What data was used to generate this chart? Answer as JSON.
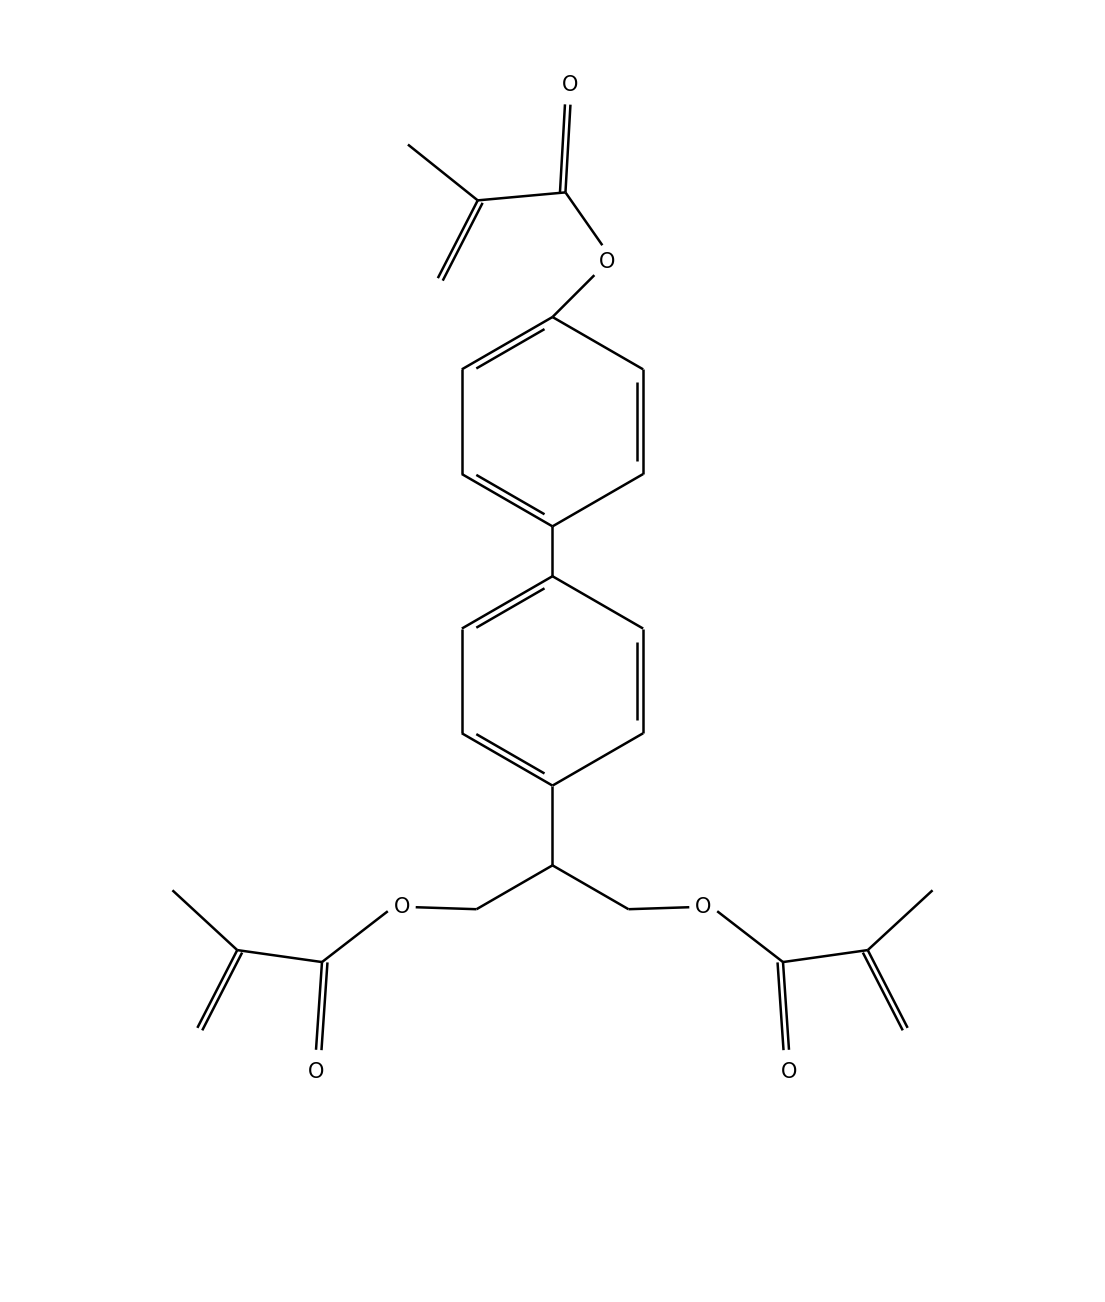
{
  "line_color": "#000000",
  "bg_color": "#ffffff",
  "lw": 1.8,
  "figsize": [
    11.05,
    13.02
  ],
  "dpi": 100,
  "xlim": [
    -5.5,
    5.5
  ],
  "ylim": [
    -5.5,
    6.5
  ]
}
